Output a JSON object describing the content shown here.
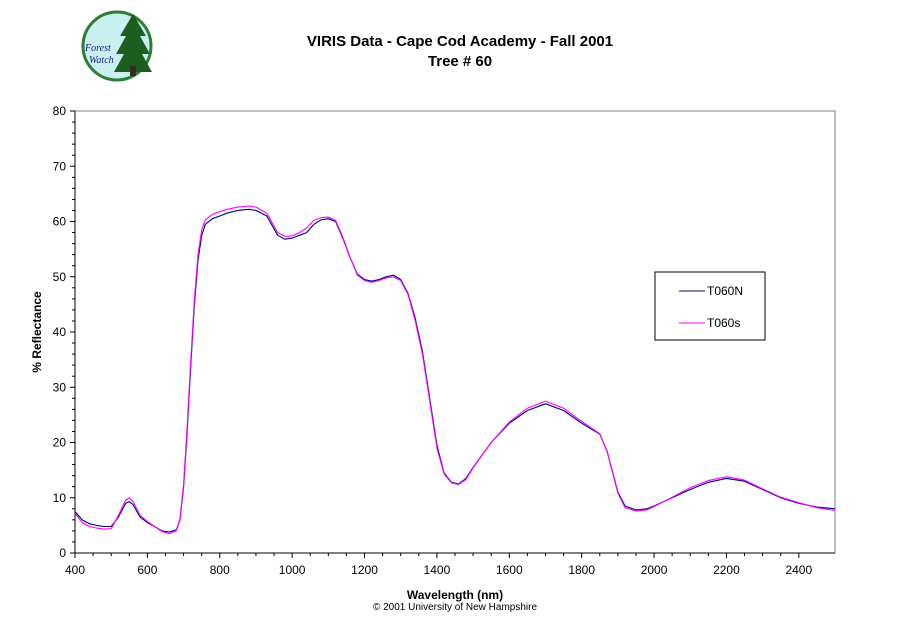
{
  "logo": {
    "line1": "Forest",
    "line2": "Watch",
    "colors": {
      "ring": "#2e7d32",
      "fill": "#c8f0f0",
      "tree": "#1b5e20",
      "text": "#1a1a80"
    }
  },
  "copyright": "© 2001 University of New Hampshire",
  "chart_data": {
    "type": "line",
    "title": [
      "VIRIS Data - Cape Cod Academy - Fall 2001",
      "Tree # 60"
    ],
    "xlabel": "Wavelength (nm)",
    "ylabel": "% Reflectance",
    "xlim": [
      400,
      2500
    ],
    "ylim": [
      0,
      80
    ],
    "xticks": [
      400,
      600,
      800,
      1000,
      1200,
      1400,
      1600,
      1800,
      2000,
      2200,
      2400
    ],
    "yticks": [
      0,
      10,
      20,
      30,
      40,
      50,
      60,
      70,
      80
    ],
    "grid": false,
    "legend": {
      "placement": "right"
    },
    "series": [
      {
        "name": "T060N",
        "color": "#000080",
        "x": [
          400,
          420,
          440,
          460,
          480,
          500,
          520,
          540,
          550,
          560,
          580,
          600,
          620,
          640,
          660,
          680,
          690,
          700,
          710,
          720,
          730,
          740,
          750,
          760,
          780,
          800,
          820,
          850,
          880,
          900,
          930,
          960,
          980,
          1000,
          1020,
          1040,
          1060,
          1080,
          1100,
          1120,
          1140,
          1160,
          1180,
          1200,
          1220,
          1240,
          1260,
          1280,
          1300,
          1320,
          1340,
          1360,
          1380,
          1400,
          1420,
          1440,
          1460,
          1480,
          1500,
          1550,
          1600,
          1650,
          1700,
          1750,
          1800,
          1850,
          1870,
          1900,
          1920,
          1950,
          1980,
          2000,
          2050,
          2100,
          2150,
          2200,
          2250,
          2300,
          2350,
          2400,
          2450,
          2500
        ],
        "values": [
          7.5,
          6.0,
          5.3,
          5.0,
          4.8,
          4.8,
          6.5,
          9.0,
          9.3,
          8.8,
          6.5,
          5.5,
          4.8,
          4.0,
          3.8,
          4.2,
          6.0,
          12.0,
          22.0,
          34.0,
          45.0,
          53.0,
          57.5,
          59.5,
          60.5,
          61.0,
          61.5,
          62.0,
          62.2,
          62.0,
          61.0,
          57.5,
          56.8,
          57.0,
          57.5,
          58.0,
          59.5,
          60.3,
          60.5,
          60.0,
          57.0,
          53.5,
          50.5,
          49.5,
          49.2,
          49.5,
          50.0,
          50.3,
          49.5,
          47.0,
          42.5,
          36.5,
          28.0,
          19.5,
          14.5,
          12.8,
          12.5,
          13.5,
          15.5,
          20.0,
          23.5,
          25.8,
          27.0,
          25.8,
          23.5,
          21.5,
          18.5,
          11.0,
          8.5,
          7.8,
          8.0,
          8.5,
          10.0,
          11.5,
          12.8,
          13.5,
          13.0,
          11.5,
          10.0,
          9.0,
          8.3,
          8.0
        ]
      },
      {
        "name": "T060s",
        "color": "#ff00ff",
        "x": [
          400,
          420,
          440,
          460,
          480,
          500,
          520,
          540,
          550,
          560,
          580,
          600,
          620,
          640,
          660,
          680,
          690,
          700,
          710,
          720,
          730,
          740,
          750,
          760,
          780,
          800,
          820,
          850,
          880,
          900,
          930,
          960,
          980,
          1000,
          1020,
          1040,
          1060,
          1080,
          1100,
          1120,
          1140,
          1160,
          1180,
          1200,
          1220,
          1240,
          1260,
          1280,
          1300,
          1320,
          1340,
          1360,
          1380,
          1400,
          1420,
          1440,
          1460,
          1480,
          1500,
          1550,
          1600,
          1650,
          1700,
          1750,
          1800,
          1850,
          1870,
          1900,
          1920,
          1950,
          1980,
          2000,
          2050,
          2100,
          2150,
          2200,
          2250,
          2300,
          2350,
          2400,
          2450,
          2500
        ],
        "values": [
          7.2,
          5.5,
          4.8,
          4.5,
          4.3,
          4.4,
          6.8,
          9.6,
          10.0,
          9.4,
          6.8,
          5.7,
          4.8,
          3.9,
          3.5,
          4.0,
          6.2,
          12.5,
          23.0,
          35.0,
          46.0,
          54.0,
          58.5,
          60.3,
          61.3,
          61.8,
          62.2,
          62.6,
          62.8,
          62.6,
          61.5,
          58.0,
          57.3,
          57.4,
          58.0,
          58.8,
          60.2,
          60.7,
          60.8,
          60.2,
          57.2,
          53.6,
          50.3,
          49.3,
          49.0,
          49.3,
          49.8,
          50.0,
          49.3,
          46.8,
          42.0,
          36.0,
          27.5,
          19.0,
          14.3,
          12.7,
          12.4,
          13.3,
          15.4,
          20.0,
          23.7,
          26.2,
          27.5,
          26.2,
          23.8,
          21.6,
          18.4,
          10.8,
          8.2,
          7.6,
          7.8,
          8.4,
          10.1,
          11.8,
          13.1,
          13.8,
          13.2,
          11.6,
          10.1,
          9.1,
          8.2,
          7.7
        ]
      }
    ]
  }
}
